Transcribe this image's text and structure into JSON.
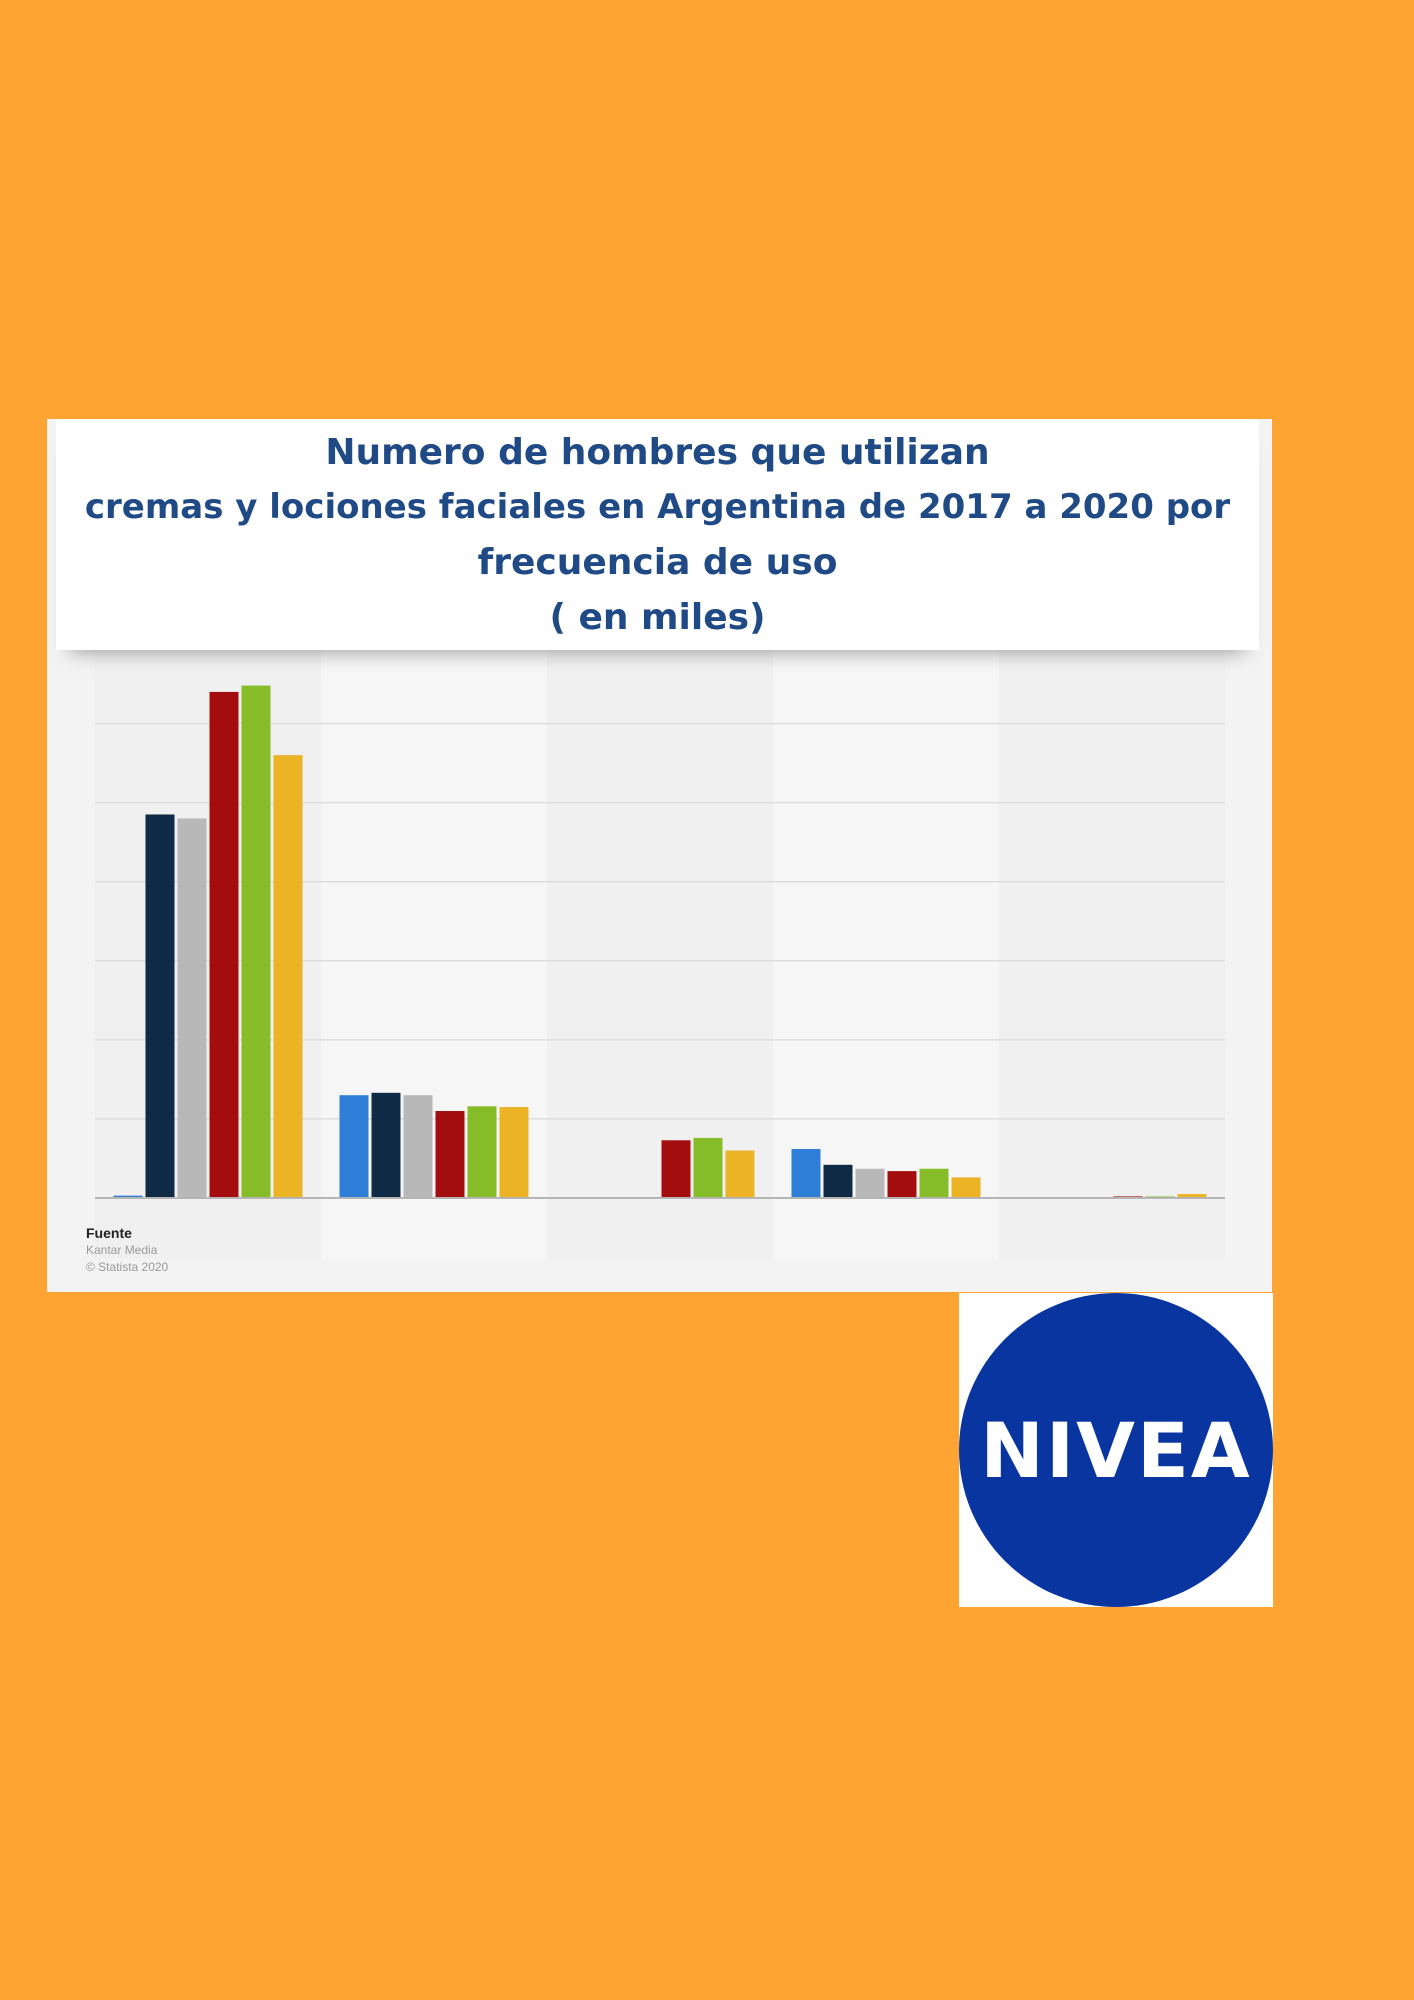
{
  "page": {
    "background": "#fda433"
  },
  "chart_data": {
    "type": "bar",
    "title_lines": [
      "Numero de hombres que utilizan",
      "cremas y lociones faciales en Argentina de 2017 a 2020 por",
      "frecuencia de uso",
      "( en miles)"
    ],
    "categories": [
      "",
      "",
      "",
      "",
      ""
    ],
    "series": [
      {
        "color": "#2f7ed8",
        "values": [
          0.3,
          13,
          0,
          6.2,
          0
        ]
      },
      {
        "color": "#0f2a45",
        "values": [
          48.5,
          13.3,
          0,
          4.2,
          0
        ]
      },
      {
        "color": "#b8b8b8",
        "values": [
          48,
          13,
          0,
          3.7,
          0
        ]
      },
      {
        "color": "#a30d0d",
        "values": [
          64,
          11,
          7.3,
          3.4,
          0.2
        ]
      },
      {
        "color": "#86bc28",
        "values": [
          64.8,
          11.6,
          7.6,
          3.7,
          0.2
        ]
      },
      {
        "color": "#ecb324",
        "values": [
          56,
          11.5,
          6,
          2.6,
          0.5
        ]
      }
    ],
    "ylim": [
      0,
      65
    ],
    "grid": true,
    "legend": "none",
    "source": {
      "heading": "Fuente",
      "lines": [
        "Kantar Media",
        "© Statista 2020"
      ]
    }
  },
  "brand": {
    "logo_text": "NIVEA",
    "logo_color": "#0935a0"
  }
}
